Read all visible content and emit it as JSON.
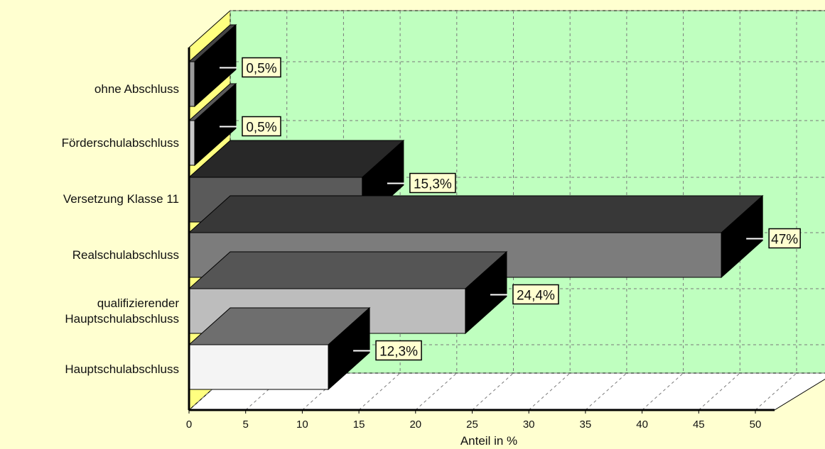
{
  "chart_data": {
    "type": "bar",
    "orientation": "horizontal",
    "three_d": true,
    "categories": [
      "ohne Abschluss",
      "Förderschulabschluss",
      "Versetzung Klasse 11",
      "Realschulabschluss",
      "qualifizierender Hauptschulabschluss",
      "Hauptschulabschluss"
    ],
    "category_lines": [
      [
        "ohne Abschluss"
      ],
      [
        "Förderschulabschluss"
      ],
      [
        "Versetzung Klasse 11"
      ],
      [
        "Realschulabschluss"
      ],
      [
        "qualifizierender",
        "Hauptschulabschluss"
      ],
      [
        "Hauptschulabschluss"
      ]
    ],
    "values": [
      0.5,
      0.5,
      15.3,
      47,
      24.4,
      12.3
    ],
    "data_labels": [
      "0,5%",
      "0,5%",
      "15,3%",
      "47%",
      "24,4%",
      "12,3%"
    ],
    "bar_colors": [
      "#9a9a9a",
      "#c8c8c8",
      "#5a5a5a",
      "#7c7c7c",
      "#bdbdbd",
      "#f4f4f4"
    ],
    "xlabel": "Anteil in %",
    "xlim": [
      0,
      50
    ],
    "xticks": [
      0,
      5,
      10,
      15,
      20,
      25,
      30,
      35,
      40,
      45,
      50
    ],
    "xtick_labels": [
      "0",
      "5",
      "10",
      "15",
      "20",
      "25",
      "30",
      "35",
      "40",
      "45",
      "50"
    ],
    "grid": true,
    "colors": {
      "background": "#ffffd0",
      "plot_back_wall": "#bfffbf",
      "plot_floor": "#ffffff",
      "plot_side_wall": "#ffff80",
      "grid": "#7a7a7a"
    }
  }
}
